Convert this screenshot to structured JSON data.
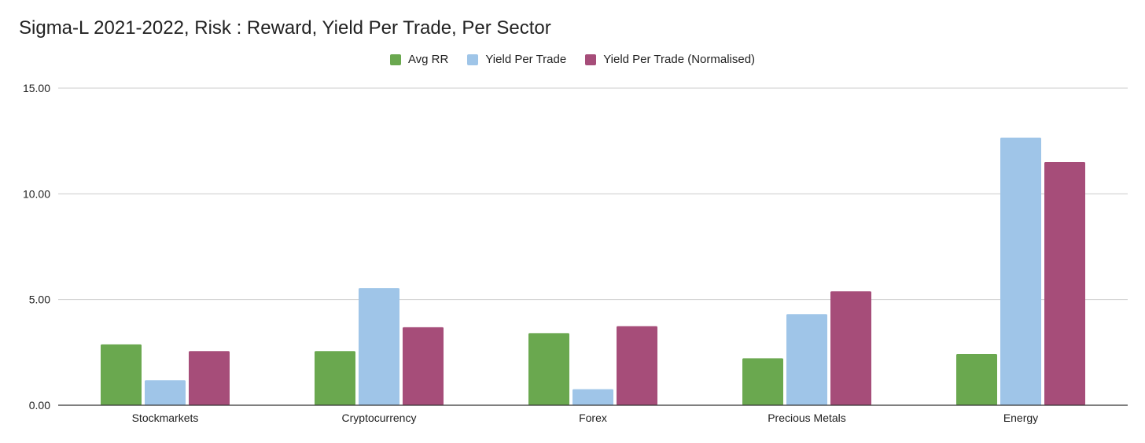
{
  "chart_data": {
    "type": "bar",
    "title": "Sigma-L 2021-2022, Risk : Reward, Yield Per Trade, Per Sector",
    "xlabel": "",
    "ylabel": "",
    "categories": [
      "Stockmarkets",
      "Cryptocurrency",
      "Forex",
      "Precious Metals",
      "Energy"
    ],
    "series": [
      {
        "name": "Avg RR",
        "color": "#6aa84f",
        "values": [
          2.88,
          2.56,
          3.41,
          2.22,
          2.42
        ]
      },
      {
        "name": "Yield Per Trade",
        "color": "#9fc5e8",
        "values": [
          1.18,
          5.54,
          0.76,
          4.31,
          12.66
        ]
      },
      {
        "name": "Yield Per Trade (Normalised)",
        "color": "#a64d79",
        "values": [
          2.56,
          3.69,
          3.74,
          5.39,
          11.5
        ]
      }
    ],
    "ylim": [
      0,
      15
    ],
    "yticks": [
      0,
      5,
      10,
      15
    ],
    "ytick_labels": [
      "0.00",
      "5.00",
      "10.00",
      "15.00"
    ],
    "grid": true,
    "legend_position": "top-center"
  }
}
